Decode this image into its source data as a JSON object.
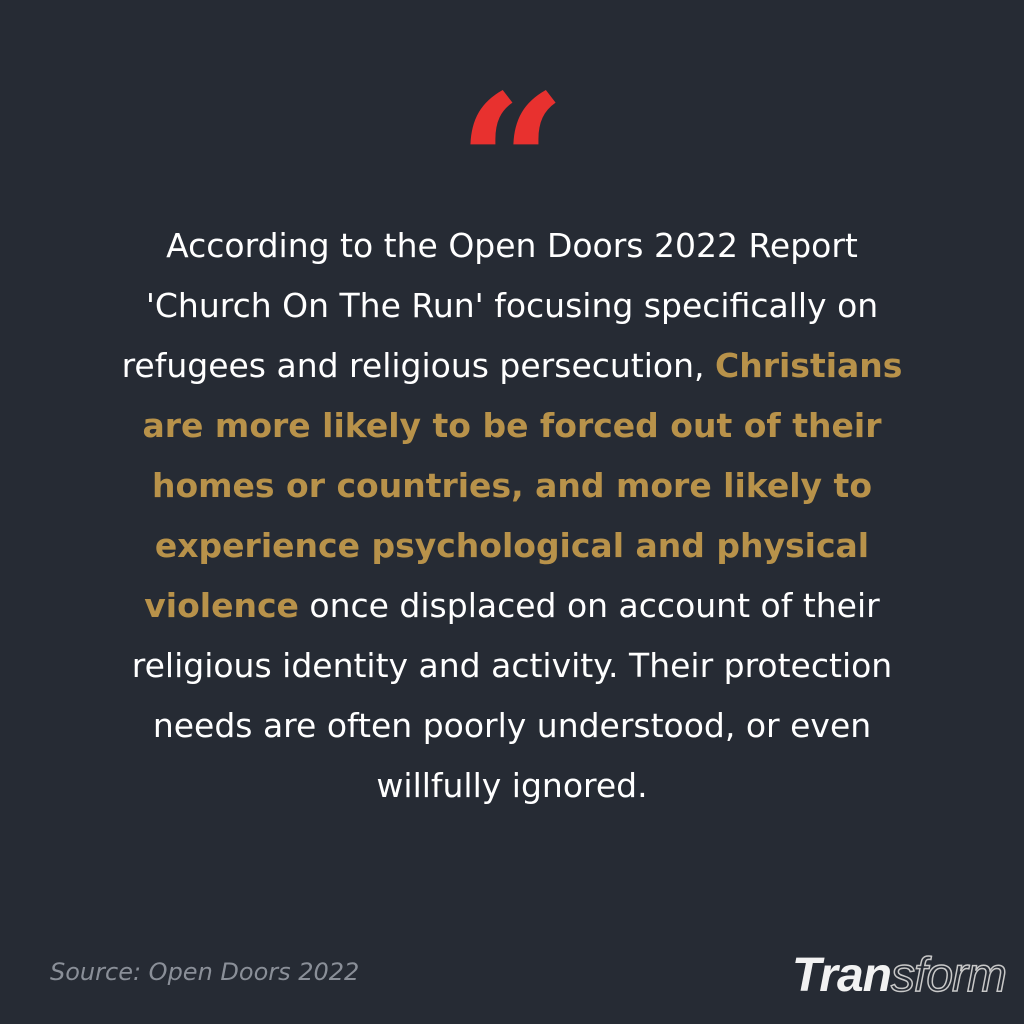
{
  "colors": {
    "background": "#262b34",
    "quote_mark": "#e8312f",
    "highlight": "#b8924a",
    "text": "#ffffff"
  },
  "quote_icon": "double-quote-open-icon",
  "quote_mark_glyph": "“",
  "lines": [
    [
      {
        "t": "According to the Open Doors 2022 Report",
        "h": false
      }
    ],
    [
      {
        "t": "'Church On The Run' focusing specifically on",
        "h": false
      }
    ],
    [
      {
        "t": "refugees and religious persecution, ",
        "h": false
      },
      {
        "t": "Christians",
        "h": true
      }
    ],
    [
      {
        "t": "are more likely to be forced out of their",
        "h": true
      }
    ],
    [
      {
        "t": "homes or countries, and more likely to",
        "h": true
      }
    ],
    [
      {
        "t": "experience psychological and physical",
        "h": true
      }
    ],
    [
      {
        "t": "violence",
        "h": true
      },
      {
        "t": " once displaced on account of their",
        "h": false
      }
    ],
    [
      {
        "t": "religious identity and activity. Their protection",
        "h": false
      }
    ],
    [
      {
        "t": "needs are often poorly understood, or even",
        "h": false
      }
    ],
    [
      {
        "t": "willfully ignored.",
        "h": false
      }
    ]
  ],
  "source": "Source: Open Doors 2022",
  "logo": {
    "part1": "Tran",
    "part2": "sform"
  }
}
